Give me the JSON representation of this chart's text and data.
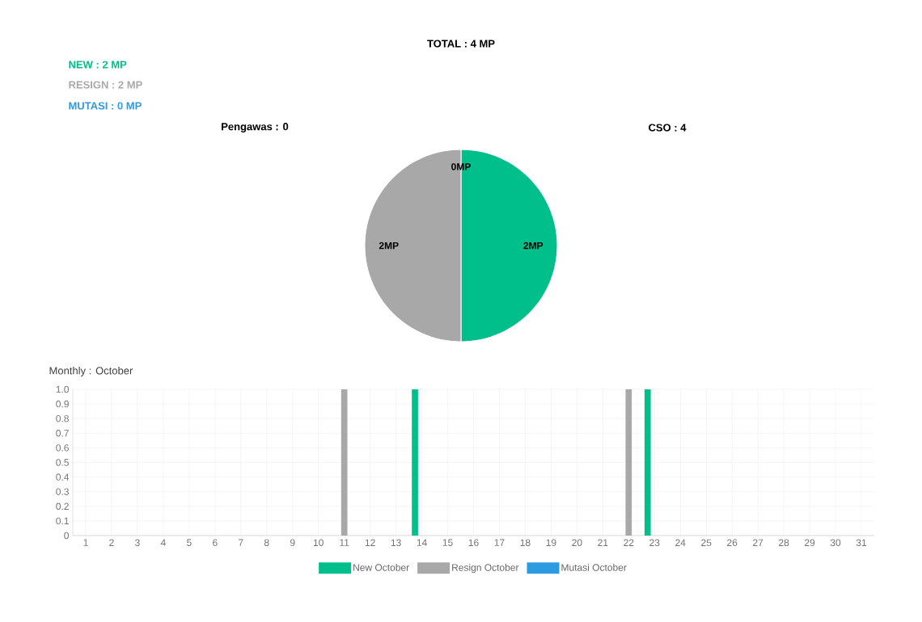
{
  "chart_data": [
    {
      "type": "pie",
      "title": "TOTAL : 4 MP",
      "categories": [
        null,
        null,
        null
      ],
      "values": [
        2,
        2,
        0
      ],
      "colors": [
        "#00bf8a",
        "#a8a8a8",
        "#2d9be0"
      ],
      "value_labels": [
        "2MP",
        "2MP",
        "0MP"
      ],
      "annotations": [
        "NEW : 2 MP",
        "RESIGN : 2 MP",
        "MUTASI : 0 MP",
        "Pengawas : 0",
        "CSO : 4"
      ]
    },
    {
      "type": "bar",
      "title": "Monthly : October",
      "categories": [
        "1",
        "2",
        "3",
        "4",
        "5",
        "6",
        "7",
        "8",
        "9",
        "10",
        "11",
        "12",
        "13",
        "14",
        "15",
        "16",
        "17",
        "18",
        "19",
        "20",
        "21",
        "22",
        "23",
        "24",
        "25",
        "26",
        "27",
        "28",
        "29",
        "30",
        "31"
      ],
      "series": [
        {
          "name": "New October",
          "color": "#00bf8a",
          "values": [
            0,
            0,
            0,
            0,
            0,
            0,
            0,
            0,
            0,
            0,
            0,
            0,
            0,
            1,
            0,
            0,
            0,
            0,
            0,
            0,
            0,
            0,
            1,
            0,
            0,
            0,
            0,
            0,
            0,
            0,
            0
          ]
        },
        {
          "name": "Resign October",
          "color": "#a8a8a8",
          "values": [
            0,
            0,
            0,
            0,
            0,
            0,
            0,
            0,
            0,
            0,
            1,
            0,
            0,
            0,
            0,
            0,
            0,
            0,
            0,
            0,
            0,
            1,
            0,
            0,
            0,
            0,
            0,
            0,
            0,
            0,
            0
          ]
        },
        {
          "name": "Mutasi October",
          "color": "#2d9be0",
          "values": [
            0,
            0,
            0,
            0,
            0,
            0,
            0,
            0,
            0,
            0,
            0,
            0,
            0,
            0,
            0,
            0,
            0,
            0,
            0,
            0,
            0,
            0,
            0,
            0,
            0,
            0,
            0,
            0,
            0,
            0,
            0
          ]
        }
      ],
      "ylim": [
        0,
        1
      ],
      "yticks": [
        0,
        0.1,
        0.2,
        0.3,
        0.4,
        0.5,
        0.6,
        0.7,
        0.8,
        0.9,
        {
          "value": 1,
          "label": "1.0"
        }
      ],
      "grid": true,
      "legend": "bottom"
    }
  ]
}
